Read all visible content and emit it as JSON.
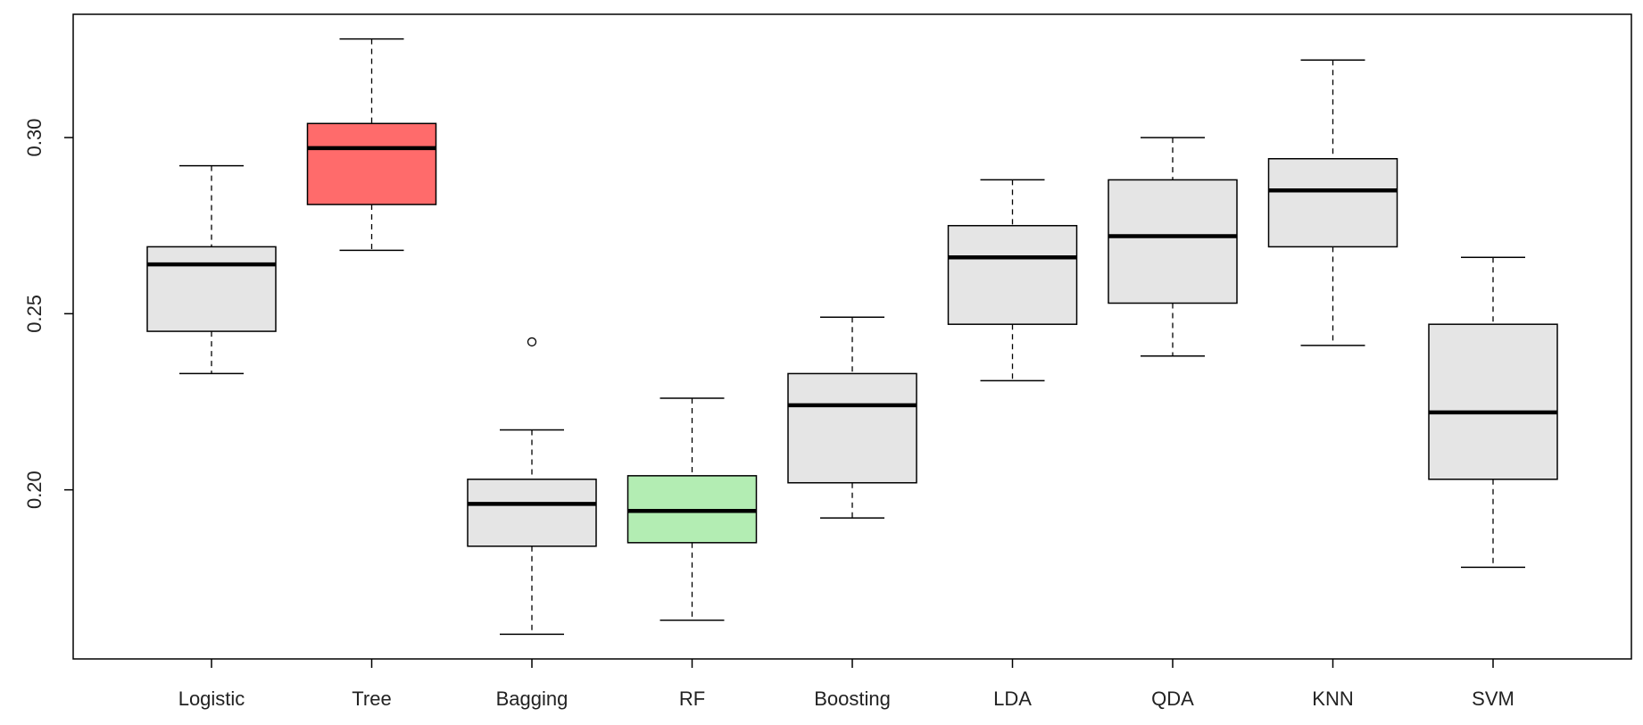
{
  "chart_data": {
    "type": "boxplot",
    "title": "",
    "xlabel": "",
    "ylabel": "",
    "ylim": [
      0.152,
      0.335
    ],
    "yticks": [
      "0.20",
      "0.25",
      "0.30"
    ],
    "ytick_values": [
      0.2,
      0.25,
      0.3
    ],
    "grid": false,
    "categories": [
      "Logistic",
      "Tree",
      "Bagging",
      "RF",
      "Boosting",
      "LDA",
      "QDA",
      "KNN",
      "SVM"
    ],
    "boxes": [
      {
        "min": 0.233,
        "q1": 0.245,
        "median": 0.264,
        "q3": 0.269,
        "max": 0.292,
        "outliers": [],
        "color": "#e5e5e5"
      },
      {
        "min": 0.268,
        "q1": 0.281,
        "median": 0.297,
        "q3": 0.304,
        "max": 0.328,
        "outliers": [],
        "color": "#ff6b6b"
      },
      {
        "min": 0.159,
        "q1": 0.184,
        "median": 0.196,
        "q3": 0.203,
        "max": 0.217,
        "outliers": [
          0.242
        ],
        "color": "#e5e5e5"
      },
      {
        "min": 0.163,
        "q1": 0.185,
        "median": 0.194,
        "q3": 0.204,
        "max": 0.226,
        "outliers": [],
        "color": "#b3edb3"
      },
      {
        "min": 0.192,
        "q1": 0.202,
        "median": 0.224,
        "q3": 0.233,
        "max": 0.249,
        "outliers": [],
        "color": "#e5e5e5"
      },
      {
        "min": 0.231,
        "q1": 0.247,
        "median": 0.266,
        "q3": 0.275,
        "max": 0.288,
        "outliers": [],
        "color": "#e5e5e5"
      },
      {
        "min": 0.238,
        "q1": 0.253,
        "median": 0.272,
        "q3": 0.288,
        "max": 0.3,
        "outliers": [],
        "color": "#e5e5e5"
      },
      {
        "min": 0.241,
        "q1": 0.269,
        "median": 0.285,
        "q3": 0.294,
        "max": 0.322,
        "outliers": [],
        "color": "#e5e5e5"
      },
      {
        "min": 0.178,
        "q1": 0.203,
        "median": 0.222,
        "q3": 0.247,
        "max": 0.266,
        "outliers": [],
        "color": "#e5e5e5"
      }
    ]
  }
}
